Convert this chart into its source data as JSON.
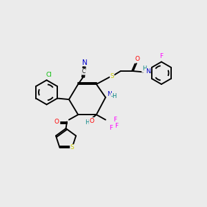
{
  "background_color": "#ebebeb",
  "figsize": [
    3.0,
    3.0
  ],
  "dpi": 100,
  "element_colors": {
    "C": "#000000",
    "N": "#0000cc",
    "O": "#ff0000",
    "S": "#cccc00",
    "F": "#ff00ff",
    "Cl": "#00bb00",
    "H": "#008080"
  },
  "bond_lw": 1.4,
  "font_size": 6.5
}
